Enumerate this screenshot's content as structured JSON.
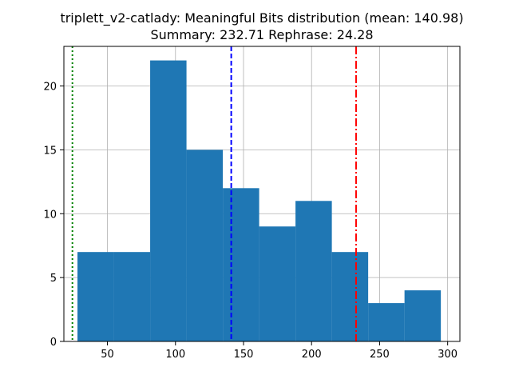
{
  "title_line1": "triplett_v2-catlady: Meaningful Bits distribution (mean: 140.98)",
  "title_line2": "Summary: 232.71 Rephrase: 24.28",
  "colors": {
    "bar": "#1f77b4",
    "mean_line": "#0000ff",
    "summary_line": "#ff0000",
    "rephrase_line": "#008000",
    "grid": "#b0b0b0"
  },
  "chart_data": {
    "type": "bar",
    "subtype": "histogram",
    "title": "triplett_v2-catlady: Meaningful Bits distribution (mean: 140.98)\nSummary: 232.71 Rephrase: 24.28",
    "xlabel": "",
    "ylabel": "",
    "xlim": [
      18,
      309
    ],
    "ylim": [
      0,
      23.1
    ],
    "grid": true,
    "x_ticks": [
      50,
      100,
      150,
      200,
      250,
      300
    ],
    "y_ticks": [
      0,
      5,
      10,
      15,
      20
    ],
    "bins": [
      {
        "start": 28.0,
        "end": 54.7,
        "count": 7
      },
      {
        "start": 54.7,
        "end": 81.4,
        "count": 7
      },
      {
        "start": 81.4,
        "end": 108.1,
        "count": 22
      },
      {
        "start": 108.1,
        "end": 134.8,
        "count": 15
      },
      {
        "start": 134.8,
        "end": 161.5,
        "count": 12
      },
      {
        "start": 161.5,
        "end": 188.2,
        "count": 9
      },
      {
        "start": 188.2,
        "end": 214.9,
        "count": 11
      },
      {
        "start": 214.9,
        "end": 241.6,
        "count": 7
      },
      {
        "start": 241.6,
        "end": 268.3,
        "count": 3
      },
      {
        "start": 268.3,
        "end": 295.0,
        "count": 4
      }
    ],
    "reference_lines": [
      {
        "value": 140.98,
        "style": "dashed",
        "color": "#0000ff"
      },
      {
        "value": 232.71,
        "style": "dashdot",
        "color": "#ff0000"
      },
      {
        "value": 24.28,
        "style": "dotted",
        "color": "#008000"
      }
    ]
  }
}
